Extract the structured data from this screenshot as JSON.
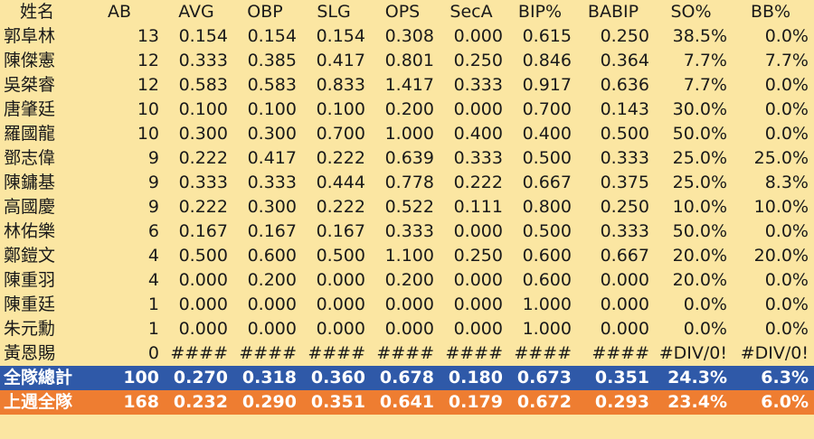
{
  "colors": {
    "background": "#fbe6a2",
    "team_row": "#2f59a8",
    "last_week_row": "#ee7d31",
    "text": "#1a1a1a"
  },
  "headers": [
    "姓名",
    "AB",
    "AVG",
    "OBP",
    "SLG",
    "OPS",
    "SecA",
    "BIP%",
    "BABIP",
    "SO%",
    "BB%"
  ],
  "players": [
    [
      "郭阜林",
      "13",
      "0.154",
      "0.154",
      "0.154",
      "0.308",
      "0.000",
      "0.615",
      "0.250",
      "38.5%",
      "0.0%"
    ],
    [
      "陳傑憲",
      "12",
      "0.333",
      "0.385",
      "0.417",
      "0.801",
      "0.250",
      "0.846",
      "0.364",
      "7.7%",
      "7.7%"
    ],
    [
      "吳桀睿",
      "12",
      "0.583",
      "0.583",
      "0.833",
      "1.417",
      "0.333",
      "0.917",
      "0.636",
      "7.7%",
      "0.0%"
    ],
    [
      "唐肇廷",
      "10",
      "0.100",
      "0.100",
      "0.100",
      "0.200",
      "0.000",
      "0.700",
      "0.143",
      "30.0%",
      "0.0%"
    ],
    [
      "羅國龍",
      "10",
      "0.300",
      "0.300",
      "0.700",
      "1.000",
      "0.400",
      "0.400",
      "0.500",
      "50.0%",
      "0.0%"
    ],
    [
      "鄧志偉",
      "9",
      "0.222",
      "0.417",
      "0.222",
      "0.639",
      "0.333",
      "0.500",
      "0.333",
      "25.0%",
      "25.0%"
    ],
    [
      "陳鏞基",
      "9",
      "0.333",
      "0.333",
      "0.444",
      "0.778",
      "0.222",
      "0.667",
      "0.375",
      "25.0%",
      "8.3%"
    ],
    [
      "高國慶",
      "9",
      "0.222",
      "0.300",
      "0.222",
      "0.522",
      "0.111",
      "0.800",
      "0.250",
      "10.0%",
      "10.0%"
    ],
    [
      "林佑樂",
      "6",
      "0.167",
      "0.167",
      "0.167",
      "0.333",
      "0.000",
      "0.500",
      "0.333",
      "50.0%",
      "0.0%"
    ],
    [
      "鄭鎧文",
      "4",
      "0.500",
      "0.600",
      "0.500",
      "1.100",
      "0.250",
      "0.600",
      "0.667",
      "20.0%",
      "20.0%"
    ],
    [
      "陳重羽",
      "4",
      "0.000",
      "0.200",
      "0.000",
      "0.200",
      "0.000",
      "0.600",
      "0.000",
      "20.0%",
      "0.0%"
    ],
    [
      "陳重廷",
      "1",
      "0.000",
      "0.000",
      "0.000",
      "0.000",
      "0.000",
      "1.000",
      "0.000",
      "0.0%",
      "0.0%"
    ],
    [
      "朱元勳",
      "1",
      "0.000",
      "0.000",
      "0.000",
      "0.000",
      "0.000",
      "1.000",
      "0.000",
      "0.0%",
      "0.0%"
    ],
    [
      "黃恩賜",
      "0",
      "####",
      "####",
      "####",
      "####",
      "####",
      "####",
      "####",
      "#DIV/0!",
      "#DIV/0!"
    ]
  ],
  "team_total": [
    "全隊總計",
    "100",
    "0.270",
    "0.318",
    "0.360",
    "0.678",
    "0.180",
    "0.673",
    "0.351",
    "24.3%",
    "6.3%"
  ],
  "last_week": [
    "上週全隊",
    "168",
    "0.232",
    "0.290",
    "0.351",
    "0.641",
    "0.179",
    "0.672",
    "0.293",
    "23.4%",
    "6.0%"
  ]
}
